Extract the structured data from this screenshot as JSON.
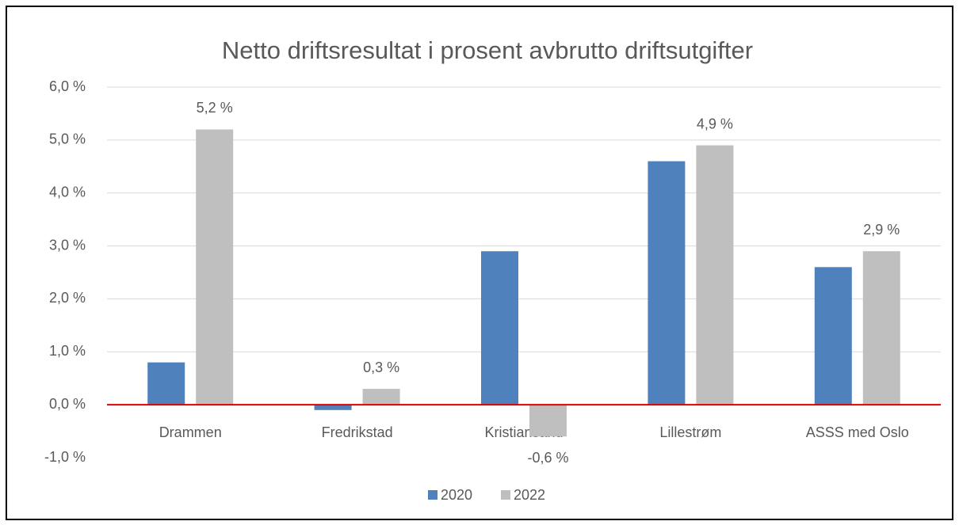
{
  "chart_data": {
    "type": "bar",
    "title": "Netto driftsresultat i prosent avbrutto driftsutgifter",
    "categories": [
      "Drammen",
      "Fredrikstad",
      "Kristiansand",
      "Lillestrøm",
      "ASSS med Oslo"
    ],
    "series": [
      {
        "name": "2020",
        "color": "#4f81bd",
        "values": [
          0.8,
          -0.1,
          2.9,
          4.6,
          2.6
        ]
      },
      {
        "name": "2022",
        "color": "#bfbfbf",
        "values": [
          5.2,
          0.3,
          -0.6,
          4.9,
          2.9
        ],
        "value_labels": [
          "5,2 %",
          "0,3 %",
          "-0,6 %",
          "4,9 %",
          "2,9 %"
        ]
      }
    ],
    "ylim": [
      -1,
      6
    ],
    "yticks": [
      {
        "value": -1,
        "label": "-1,0 %"
      },
      {
        "value": 0,
        "label": "0,0 %"
      },
      {
        "value": 1,
        "label": "1,0 %"
      },
      {
        "value": 2,
        "label": "2,0 %"
      },
      {
        "value": 3,
        "label": "3,0 %"
      },
      {
        "value": 4,
        "label": "4,0 %"
      },
      {
        "value": 5,
        "label": "5,0 %"
      },
      {
        "value": 6,
        "label": "6,0 %"
      }
    ],
    "grid": true,
    "zero_line_color": "#e00000",
    "legend": "bottom"
  }
}
